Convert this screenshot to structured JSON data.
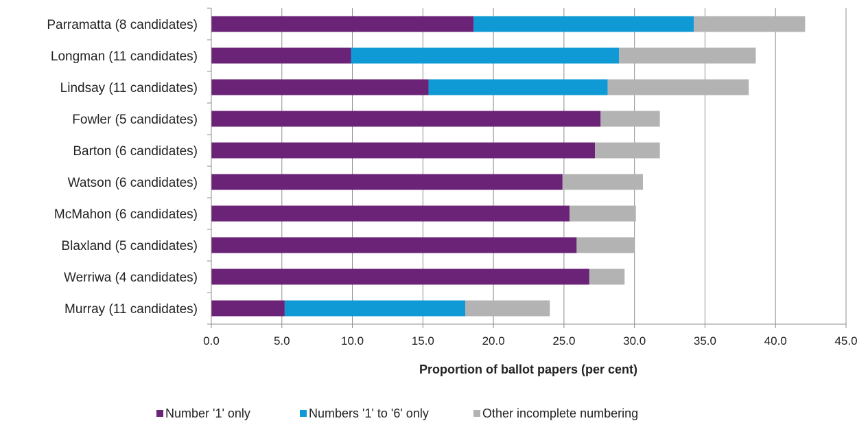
{
  "chart_data": {
    "type": "bar",
    "orientation": "horizontal",
    "stacked": true,
    "title": "",
    "xlabel": "Proportion of ballot papers (per cent)",
    "ylabel": "",
    "xlim": [
      0,
      45
    ],
    "xticks": [
      "0.0",
      "5.0",
      "10.0",
      "15.0",
      "20.0",
      "25.0",
      "30.0",
      "35.0",
      "40.0",
      "45.0"
    ],
    "grid": "vertical",
    "legend_position": "bottom",
    "categories": [
      "Parramatta (8 candidates)",
      "Longman (11 candidates)",
      "Lindsay (11 candidates)",
      "Fowler (5 candidates)",
      "Barton (6 candidates)",
      "Watson (6 candidates)",
      "McMahon (6 candidates)",
      "Blaxland (5 candidates)",
      "Werriwa (4 candidates)",
      "Murray (11 candidates)"
    ],
    "series": [
      {
        "name": "Number '1' only",
        "color": "#6b2377",
        "values": [
          18.6,
          9.9,
          15.4,
          27.6,
          27.2,
          24.9,
          25.4,
          25.9,
          26.8,
          5.2
        ]
      },
      {
        "name": "Numbers '1' to '6' only",
        "color": "#0f9ad6",
        "values": [
          15.6,
          19.0,
          12.7,
          0,
          0,
          0,
          0,
          0,
          0,
          12.8
        ]
      },
      {
        "name": "Other incomplete numbering",
        "color": "#b3b3b3",
        "values": [
          7.9,
          9.7,
          10.0,
          4.2,
          4.6,
          5.7,
          4.7,
          4.1,
          2.5,
          6.0
        ]
      }
    ]
  }
}
